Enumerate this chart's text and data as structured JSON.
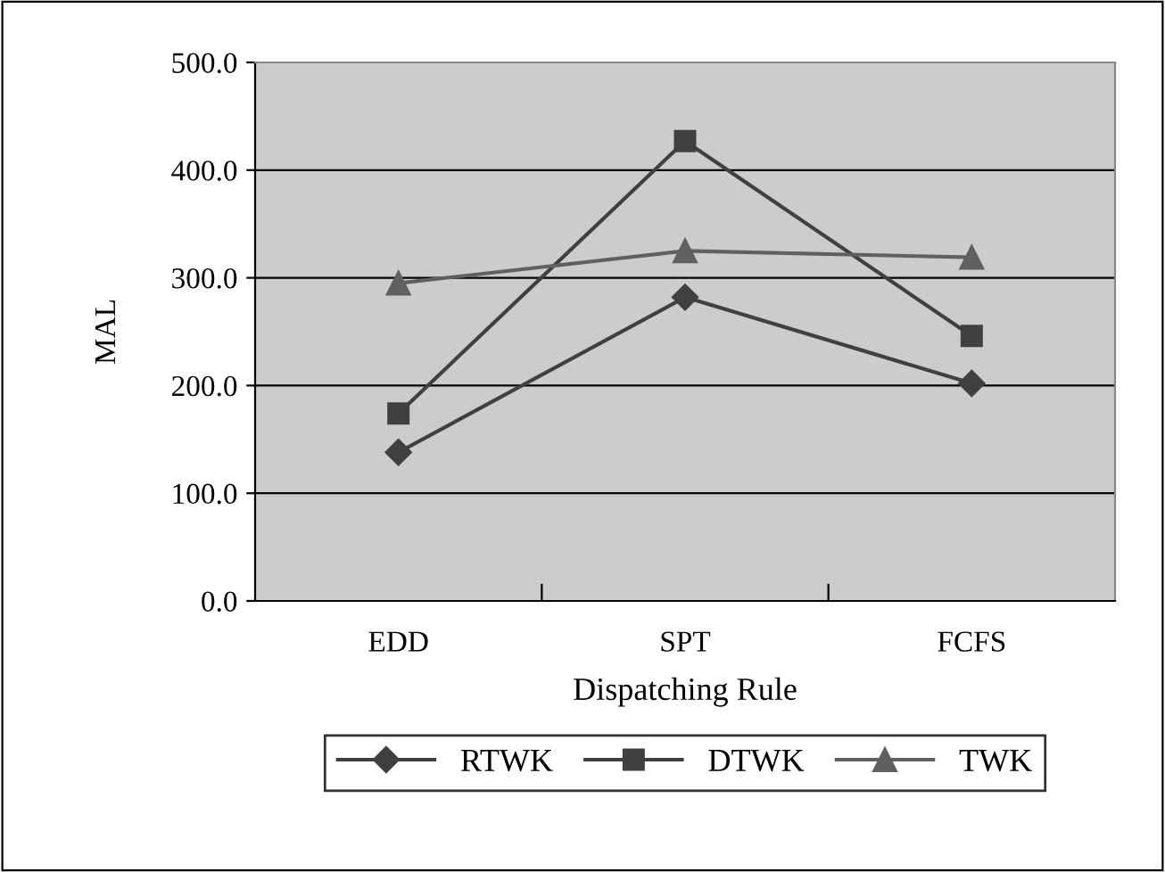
{
  "chart_data": {
    "type": "line",
    "xlabel": "Dispatching Rule",
    "ylabel": "MAL",
    "categories": [
      "EDD",
      "SPT",
      "FCFS"
    ],
    "series": [
      {
        "name": "RTWK",
        "color": "#404040",
        "marker": "diamond",
        "values": [
          138,
          282,
          202
        ]
      },
      {
        "name": "DTWK",
        "color": "#404040",
        "marker": "square",
        "values": [
          174,
          427,
          246
        ]
      },
      {
        "name": "TWK",
        "color": "#606060",
        "marker": "triangle",
        "values": [
          295,
          325,
          319
        ]
      }
    ],
    "ylim": [
      0,
      500
    ],
    "yticks": [
      {
        "value": 0,
        "label": "0.0"
      },
      {
        "value": 100,
        "label": "100.0"
      },
      {
        "value": 200,
        "label": "200.0"
      },
      {
        "value": 300,
        "label": "300.0"
      },
      {
        "value": 400,
        "label": "400.0"
      },
      {
        "value": 500,
        "label": "500.0"
      }
    ],
    "grid": "y",
    "legend": "bottom",
    "line_style": "solid"
  }
}
